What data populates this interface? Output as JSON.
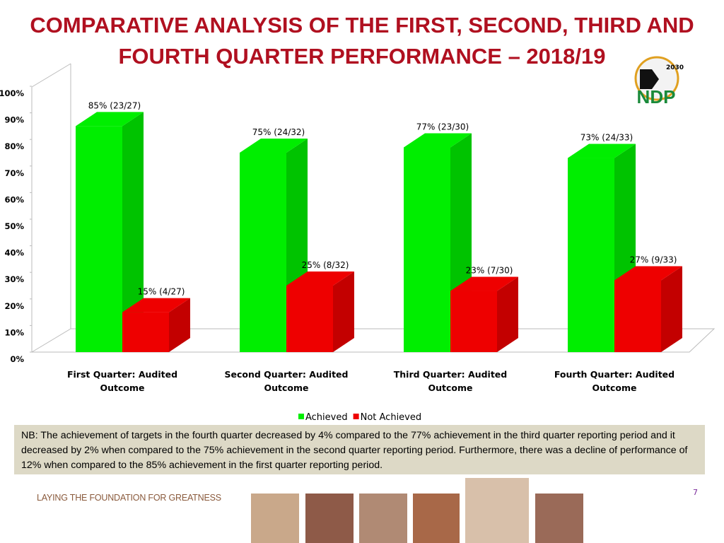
{
  "title": "COMPARATIVE ANALYSIS OF THE FIRST, SECOND, THIRD AND FOURTH QUARTER PERFORMANCE – 2018/19",
  "logo": {
    "year": "2030",
    "text": "NDP"
  },
  "chart_data": {
    "type": "bar3d",
    "categories": [
      "First Quarter: Audited Outcome",
      "Second Quarter: Audited Outcome",
      "Third Quarter: Audited Outcome",
      "Fourth Quarter: Audited Outcome"
    ],
    "series": [
      {
        "name": "Achieved",
        "color": "#00ee00",
        "values": [
          85,
          75,
          77,
          73
        ],
        "value_labels": [
          "85% (23/27)",
          "75% (24/32)",
          "77% (23/30)",
          "73% (24/33)"
        ]
      },
      {
        "name": "Not Achieved",
        "color": "#ee0000",
        "values": [
          15,
          25,
          23,
          27
        ],
        "value_labels": [
          "15% (4/27)",
          "25% (8/32)",
          "23% (7/30)",
          "27% (9/33)"
        ]
      }
    ],
    "ylim": [
      0,
      100
    ],
    "yticks": [
      {
        "value": 0,
        "label": "0%"
      },
      {
        "value": 10,
        "label": "10%"
      },
      {
        "value": 20,
        "label": "20%"
      },
      {
        "value": 30,
        "label": "30%"
      },
      {
        "value": 40,
        "label": "40%"
      },
      {
        "value": 50,
        "label": "50%"
      },
      {
        "value": 60,
        "label": "60%"
      },
      {
        "value": 70,
        "label": "70%"
      },
      {
        "value": 80,
        "label": "80%"
      },
      {
        "value": 90,
        "label": "90%"
      },
      {
        "value": 100,
        "label": "100%"
      }
    ],
    "legend": "bottom"
  },
  "note": "NB: The achievement of targets  in the fourth quarter decreased by 4%  compared to the 77% achievement in the third quarter reporting period and it decreased by 2% when compared to the 75% achievement in the second quarter reporting period. Furthermore, there  was a decline of performance of 12% when compared to the 85% achievement in the first quarter reporting period.",
  "footer": "LAYING THE FOUNDATION FOR GREATNESS",
  "page_number": "7"
}
